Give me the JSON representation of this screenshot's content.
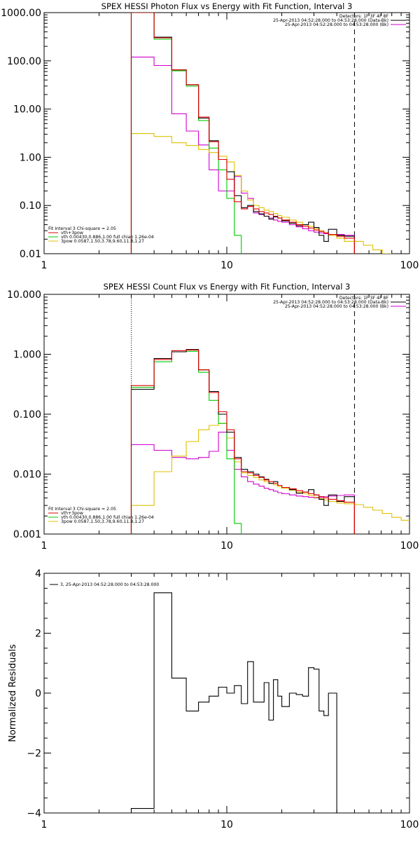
{
  "colors": {
    "data": "#000000",
    "vth_3pow": "#e00000",
    "vth": "#00cc00",
    "3pow": "#e0c000",
    "bkg": "#d000d0",
    "background": "#ffffff"
  },
  "chart_data": [
    {
      "type": "line",
      "title": "SPEX HESSI Photon Flux vs Energy with Fit Function, Interval 3",
      "xscale": "log",
      "yscale": "log",
      "xlim": [
        1,
        100
      ],
      "ylim": [
        0.01,
        1000
      ],
      "x_ticks": [
        "1",
        "10",
        "100"
      ],
      "y_ticks": [
        "0.01",
        "0.10",
        "1.00",
        "10.00",
        "100.00",
        "1000.00"
      ],
      "legend_top_right": [
        "Detectors: 1F 3F 4F 8F",
        "25-Apr-2013 04:52:28.000 to 04:53:28.000 (Data-Bk)",
        "25-Apr-2013 04:52:28.000 to 04:53:28.000 (Bk)"
      ],
      "legend_bottom_left": [
        "Fit Interval 3   Chi-square = 2.05",
        "vth+3pow",
        "vth 0.00430,0.886,1.00  full chian 1.26e-04",
        "3pow 0.0587,1.50,3.78,9.60,11.8,1.27"
      ],
      "vlines": {
        "dotted": 3,
        "dashed": 50
      },
      "bin_edges": [
        3,
        4,
        5,
        6,
        7,
        8,
        9,
        10,
        11,
        12,
        13,
        14,
        15,
        16,
        17,
        18,
        19,
        20,
        22,
        24,
        26,
        28,
        30,
        32,
        34,
        36,
        40,
        44,
        50
      ],
      "series": [
        {
          "name": "vth+3pow",
          "color_key": "vth_3pow",
          "values": [
            1000,
            300,
            65,
            32,
            6.8,
            2.1,
            0.9,
            0.35,
            0.12,
            0.085,
            0.095,
            0.085,
            0.075,
            0.07,
            0.065,
            0.06,
            0.055,
            0.05,
            0.045,
            0.04,
            0.037,
            0.034,
            0.031,
            0.029,
            0.027,
            0.025,
            0.023,
            0.021
          ]
        },
        {
          "name": "vth",
          "color_key": "vth",
          "values": [
            1000,
            280,
            62,
            30,
            5.8,
            1.55,
            0.55,
            0.14,
            0.024
          ]
        },
        {
          "name": "3pow",
          "color_key": "3pow",
          "values": [
            3.1,
            2.7,
            2.0,
            1.75,
            1.45,
            1.25,
            1.05,
            0.8,
            0.42,
            0.2,
            0.13,
            0.1,
            0.09,
            0.08,
            0.075,
            0.068,
            0.062,
            0.057,
            0.05,
            0.045,
            0.04,
            0.037,
            0.033,
            0.03,
            0.027,
            0.024,
            0.021,
            0.018
          ]
        },
        {
          "name": "Data-Bk",
          "color_key": "data",
          "values": [
            1000,
            310,
            65,
            32,
            6.5,
            2.2,
            0.9,
            0.5,
            0.16,
            0.09,
            0.1,
            0.075,
            0.067,
            0.06,
            0.052,
            0.058,
            0.055,
            0.048,
            0.043,
            0.038,
            0.04,
            0.045,
            0.035,
            0.024,
            0.018,
            0.032,
            0.024,
            0.023
          ]
        },
        {
          "name": "Bk",
          "color_key": "bkg",
          "values": [
            120,
            80,
            8,
            3.5,
            1.8,
            0.55,
            0.2,
            0.2,
            0.4,
            0.18,
            0.14,
            0.07,
            0.065,
            0.06,
            0.055,
            0.05,
            0.047,
            0.045,
            0.04,
            0.036,
            0.033,
            0.03,
            0.028,
            0.027,
            0.026,
            0.025,
            0.025,
            0.024
          ]
        }
      ],
      "tail": {
        "color_key": "3pow",
        "bin_edges": [
          50,
          56,
          63,
          71,
          80
        ],
        "values": [
          0.018,
          0.015,
          0.012,
          0.01
        ]
      }
    },
    {
      "type": "line",
      "title": "SPEX HESSI Count Flux vs Energy with Fit Function, Interval 3",
      "xscale": "log",
      "yscale": "log",
      "xlim": [
        1,
        100
      ],
      "ylim": [
        0.001,
        10
      ],
      "x_ticks": [
        "1",
        "10",
        "100"
      ],
      "y_ticks": [
        "0.001",
        "0.010",
        "0.100",
        "1.000",
        "10.000"
      ],
      "legend_top_right": [
        "Detectors: 1F 3F 4F 8F",
        "25-Apr-2013 04:52:28.000 to 04:53:28.000 (Data-Bk)",
        "25-Apr-2013 04:52:28.000 to 04:53:28.000 (Bk)"
      ],
      "legend_bottom_left": [
        "Fit Interval 3   Chi-square = 2.05",
        "vth+3pow",
        "vth 0.00430,0.886,1.00  full chian 1.26e-04",
        "3pow 0.0587,1.50,3.78,9.60,11.8,1.27"
      ],
      "vlines": {
        "dotted": 3,
        "dashed": 50
      },
      "bin_edges": [
        3,
        4,
        5,
        6,
        7,
        8,
        9,
        10,
        11,
        12,
        13,
        14,
        15,
        16,
        17,
        18,
        19,
        20,
        22,
        24,
        26,
        28,
        30,
        32,
        34,
        36,
        40,
        44,
        50
      ],
      "series": [
        {
          "name": "vth+3pow",
          "color_key": "vth_3pow",
          "values": [
            0.3,
            0.82,
            1.15,
            1.18,
            0.55,
            0.23,
            0.11,
            0.055,
            0.018,
            0.011,
            0.0105,
            0.0095,
            0.0088,
            0.008,
            0.0075,
            0.007,
            0.0065,
            0.006,
            0.0057,
            0.0053,
            0.005,
            0.0047,
            0.0045,
            0.0042,
            0.004,
            0.0038,
            0.0036,
            0.0034
          ]
        },
        {
          "name": "vth",
          "color_key": "vth",
          "values": [
            0.28,
            0.75,
            1.1,
            1.12,
            0.5,
            0.17,
            0.07,
            0.018,
            0.0015
          ]
        },
        {
          "name": "3pow",
          "color_key": "3pow",
          "values": [
            0.003,
            0.011,
            0.02,
            0.035,
            0.055,
            0.065,
            0.07,
            0.04,
            0.016,
            0.0105,
            0.0095,
            0.0088,
            0.008,
            0.0075,
            0.007,
            0.0066,
            0.0062,
            0.0058,
            0.0054,
            0.005,
            0.0047,
            0.0044,
            0.0041,
            0.0039,
            0.0037,
            0.0035,
            0.0033,
            0.0032
          ]
        },
        {
          "name": "Data-Bk",
          "color_key": "data",
          "values": [
            0.26,
            0.85,
            1.1,
            1.2,
            0.55,
            0.24,
            0.1,
            0.05,
            0.019,
            0.012,
            0.011,
            0.01,
            0.009,
            0.0082,
            0.007,
            0.0075,
            0.0065,
            0.006,
            0.0055,
            0.0048,
            0.005,
            0.0055,
            0.0045,
            0.0038,
            0.003,
            0.0045,
            0.0035,
            0.0042
          ]
        },
        {
          "name": "Bk",
          "color_key": "bkg",
          "values": [
            0.031,
            0.025,
            0.019,
            0.018,
            0.019,
            0.024,
            0.05,
            0.025,
            0.012,
            0.009,
            0.0075,
            0.0068,
            0.0063,
            0.0058,
            0.0055,
            0.0052,
            0.0049,
            0.0047,
            0.0045,
            0.0043,
            0.0042,
            0.0041,
            0.004,
            0.0041,
            0.0042,
            0.0043,
            0.0044,
            0.0045
          ]
        }
      ],
      "tail": {
        "color_key": "3pow",
        "bin_edges": [
          50,
          56,
          63,
          71,
          80,
          90,
          100
        ],
        "values": [
          0.0031,
          0.0028,
          0.0025,
          0.0022,
          0.0019,
          0.0017
        ]
      }
    },
    {
      "type": "line",
      "title": "",
      "ylabel": "Normalized Residuals",
      "xscale": "log",
      "yscale": "linear",
      "xlim": [
        1,
        100
      ],
      "ylim": [
        -4,
        4
      ],
      "x_ticks": [
        "1",
        "10",
        "100"
      ],
      "y_ticks": [
        "-4",
        "-2",
        "0",
        "2",
        "4"
      ],
      "legend_top_left": "3, 25-Apr-2013 04:52:28.000 to 04:53:28.000",
      "bin_edges": [
        3,
        4,
        5,
        6,
        7,
        8,
        9,
        10,
        11,
        12,
        13,
        14,
        15,
        16,
        17,
        18,
        19,
        20,
        22,
        24,
        26,
        28,
        30,
        32,
        34,
        36,
        40,
        44,
        50
      ],
      "series": [
        {
          "name": "3, 25-Apr-2013 04:52:28.000 to 04:53:28.000",
          "color_key": "data",
          "values": [
            -3.85,
            3.35,
            0.5,
            -0.6,
            -0.3,
            -0.1,
            0.2,
            0.0,
            0.25,
            -0.35,
            1.05,
            -0.3,
            -0.3,
            0.35,
            -0.9,
            0.45,
            -0.1,
            -0.45,
            0.0,
            -0.05,
            -0.1,
            0.85,
            0.8,
            -0.6,
            -0.75,
            0.0,
            -4.0,
            -4.0
          ]
        }
      ]
    }
  ]
}
